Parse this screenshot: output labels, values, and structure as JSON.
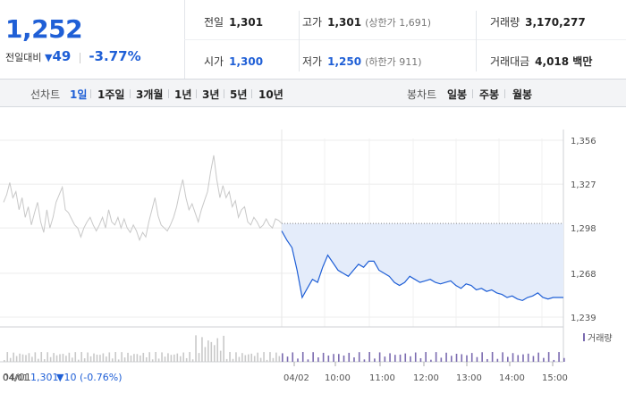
{
  "quote": {
    "price": "1,252",
    "change_label": "전일대비",
    "change_triangle": "▼",
    "change_amount": "49",
    "change_percent": "-3.77%",
    "prev_close": {
      "label": "전일",
      "value": "1,301"
    },
    "open": {
      "label": "시가",
      "value": "1,300"
    },
    "high": {
      "label": "고가",
      "value": "1,301",
      "limit": "(상한가 1,691)"
    },
    "low": {
      "label": "저가",
      "value": "1,250",
      "limit": "(하한가 911)"
    },
    "volume": {
      "label": "거래량",
      "value": "3,170,277"
    },
    "amount": {
      "label": "거래대금",
      "value": "4,018 백만"
    }
  },
  "tabs": {
    "line_label": "선차트",
    "line_items": [
      "1일",
      "1주일",
      "3개월",
      "1년",
      "3년",
      "5년",
      "10년"
    ],
    "active_line": "1일",
    "candle_label": "봉차트",
    "candle_items": [
      "일봉",
      "주봉",
      "월봉"
    ]
  },
  "legend": {
    "volume": "거래량"
  },
  "footer": {
    "prev_day": "04/01",
    "prev_close": "1,301",
    "prev_change": "▼10",
    "prev_pct": "(-0.76%)"
  },
  "colors": {
    "accent": "#1f5fd6",
    "prev_line": "#c8c8c8",
    "area_fill": "#e4ecfa",
    "volume_bar": "#7b6bb0"
  },
  "chart_data": {
    "type": "line",
    "y_ticks": [
      1356,
      1327,
      1298,
      1268,
      1239
    ],
    "ylim": [
      1239,
      1356
    ],
    "x_ticks": [
      "04/01",
      "04/02",
      "10:00",
      "11:00",
      "12:00",
      "13:00",
      "14:00",
      "15:00"
    ],
    "reference_value": 1301,
    "series": [
      {
        "name": "04/01",
        "values": [
          1315,
          1320,
          1328,
          1318,
          1322,
          1310,
          1318,
          1305,
          1312,
          1300,
          1308,
          1315,
          1302,
          1295,
          1310,
          1298,
          1305,
          1315,
          1320,
          1325,
          1310,
          1308,
          1304,
          1300,
          1298,
          1292,
          1298,
          1302,
          1305,
          1300,
          1296,
          1300,
          1305,
          1298,
          1310,
          1302,
          1300,
          1305,
          1298,
          1304,
          1298,
          1295,
          1300,
          1296,
          1290,
          1295,
          1292,
          1302,
          1310,
          1318,
          1306,
          1300,
          1298,
          1296,
          1300,
          1305,
          1312,
          1322,
          1330,
          1318,
          1310,
          1314,
          1308,
          1302,
          1310,
          1316,
          1322,
          1335,
          1346,
          1330,
          1318,
          1326,
          1318,
          1322,
          1312,
          1316,
          1305,
          1310,
          1312,
          1302,
          1300,
          1305,
          1302,
          1298,
          1300,
          1304,
          1300,
          1298,
          1304,
          1303,
          1301
        ]
      },
      {
        "name": "04/02",
        "values": [
          1296,
          1290,
          1285,
          1270,
          1252,
          1258,
          1264,
          1262,
          1272,
          1280,
          1275,
          1270,
          1268,
          1266,
          1270,
          1274,
          1272,
          1276,
          1276,
          1270,
          1268,
          1266,
          1262,
          1260,
          1262,
          1266,
          1264,
          1262,
          1263,
          1264,
          1262,
          1261,
          1262,
          1263,
          1260,
          1258,
          1261,
          1260,
          1257,
          1258,
          1256,
          1257,
          1255,
          1254,
          1252,
          1253,
          1251,
          1250,
          1252,
          1253,
          1255,
          1252,
          1251,
          1252,
          1252,
          1252
        ]
      }
    ],
    "volume_label": "거래량"
  }
}
